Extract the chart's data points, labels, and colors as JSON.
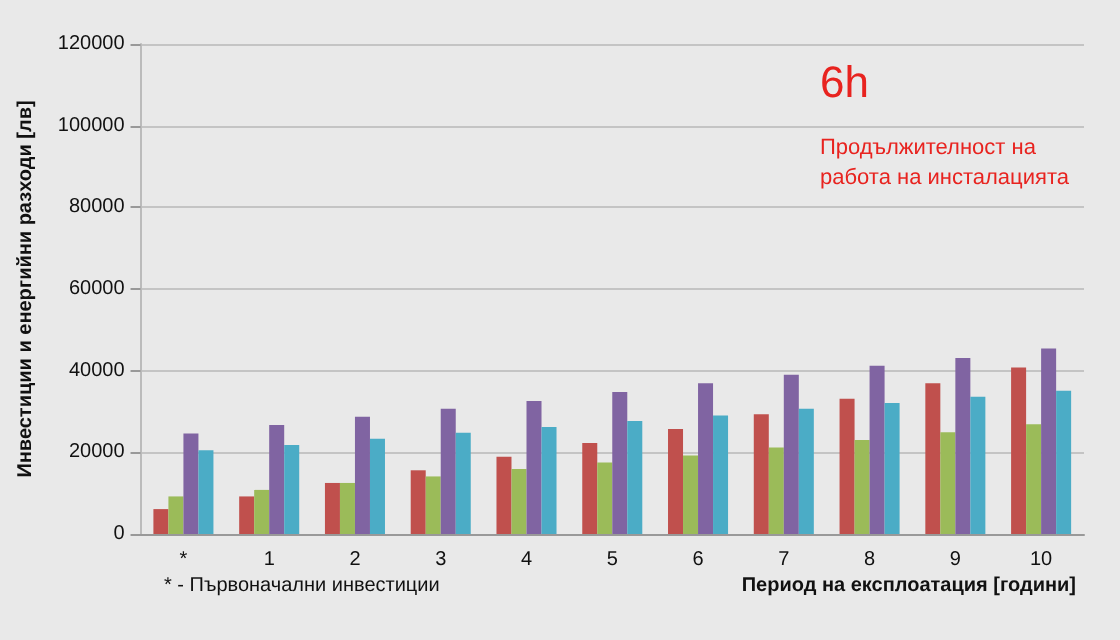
{
  "chart_data": {
    "type": "bar",
    "categories": [
      "*",
      "1",
      "2",
      "3",
      "4",
      "5",
      "6",
      "7",
      "8",
      "9",
      "10"
    ],
    "series": [
      {
        "color": "#c0504d",
        "values": [
          6100,
          9200,
          12500,
          15600,
          18900,
          22300,
          25700,
          29300,
          33100,
          36900,
          40800
        ]
      },
      {
        "color": "#9bbb59",
        "values": [
          9200,
          10800,
          12500,
          14100,
          15900,
          17500,
          19200,
          21200,
          23000,
          24900,
          26900
        ]
      },
      {
        "color": "#8064a2",
        "values": [
          24600,
          26700,
          28700,
          30700,
          32600,
          34800,
          36900,
          39000,
          41200,
          43100,
          45400
        ]
      },
      {
        "color": "#4bacc6",
        "values": [
          20500,
          21800,
          23300,
          24800,
          26200,
          27700,
          29000,
          30700,
          32100,
          33600,
          35100
        ]
      }
    ],
    "ylim": [
      0,
      120000
    ],
    "yticks": [
      0,
      20000,
      40000,
      60000,
      80000,
      100000,
      120000
    ],
    "grid": "y",
    "ylabel": "Инвестиции и енергийни разходи [лв]",
    "xlabel": "Период на експлоатация [години]",
    "annotations": [
      "6h",
      "Продължителност на работа на инсталацията",
      "* - Първоначални инвестиции"
    ]
  }
}
